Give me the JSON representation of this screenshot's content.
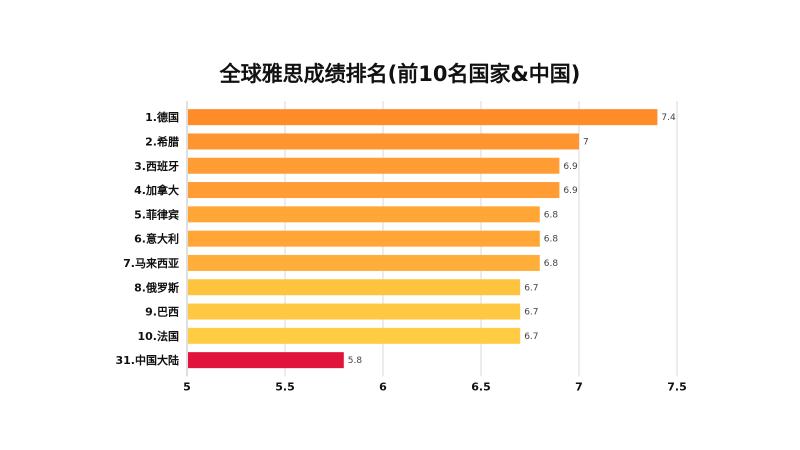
{
  "chart_data": {
    "type": "bar",
    "orientation": "horizontal",
    "title": "全球雅思成绩排名(前10名国家&中国)",
    "categories": [
      "1.德国",
      "2.希腊",
      "3.西班牙",
      "4.加拿大",
      "5.菲律宾",
      "6.意大利",
      "7.马来西亚",
      "8.俄罗斯",
      "9.巴西",
      "10.法国",
      "31.中国大陆"
    ],
    "values": [
      7.4,
      7,
      6.9,
      6.9,
      6.8,
      6.8,
      6.8,
      6.7,
      6.7,
      6.7,
      5.8
    ],
    "value_labels": [
      "7.4",
      "7",
      "6.9",
      "6.9",
      "6.8",
      "6.8",
      "6.8",
      "6.7",
      "6.7",
      "6.7",
      "5.8"
    ],
    "xlim": [
      5,
      7.5
    ],
    "xticks": [
      "5",
      "5.5",
      "6",
      "6.5",
      "7",
      "7.5"
    ],
    "xtick_values": [
      5,
      5.5,
      6,
      6.5,
      7,
      7.5
    ],
    "grid": "vertical",
    "colors": [
      "#FF8C28",
      "#FF9530",
      "#FF9C33",
      "#FF9C33",
      "#FFA637",
      "#FFA637",
      "#FFAE3A",
      "#FFC43F",
      "#FFC843",
      "#FFCC44",
      "#E0143C"
    ]
  }
}
